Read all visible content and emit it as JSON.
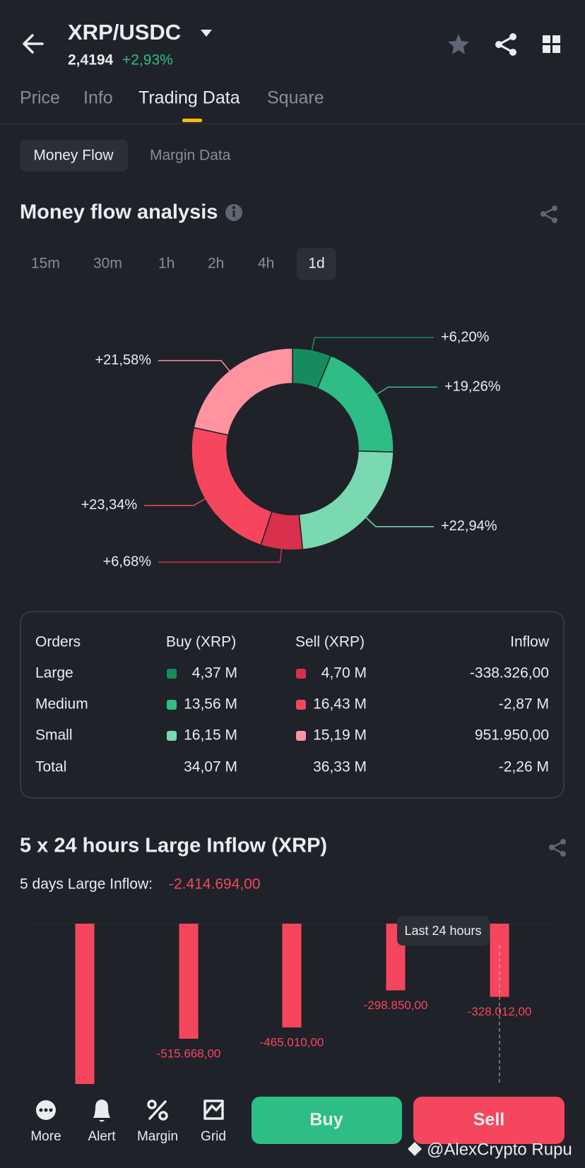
{
  "header": {
    "pair": "XRP/USDC",
    "price": "2,4194",
    "change": "+2,93%"
  },
  "tabs": [
    "Price",
    "Info",
    "Trading Data",
    "Square"
  ],
  "sub_tabs": [
    "Money Flow",
    "Margin Data"
  ],
  "intervals": [
    "15m",
    "30m",
    "1h",
    "2h",
    "4h",
    "1d"
  ],
  "chart_data": [
    {
      "type": "pie",
      "title": "Money flow analysis",
      "values": [
        6.2,
        19.26,
        22.94,
        6.68,
        23.34,
        21.58
      ],
      "value_labels": [
        "+6,20%",
        "+19,26%",
        "+22,94%",
        "+6,68%",
        "+23,34%",
        "+21,58%"
      ],
      "colors": [
        "#168c5e",
        "#2ebd85",
        "#7ad9b0",
        "#d9304e",
        "#f6465d",
        "#ff939f"
      ]
    },
    {
      "type": "bar",
      "title": "5 x 24 hours Large Inflow (XRP)",
      "total_label": "5 days Large Inflow:",
      "total": "-2.414.694,00",
      "categories": [
        null,
        null,
        null,
        null,
        null
      ],
      "values": [
        -807154,
        -515668,
        -465010,
        -298850,
        -328012
      ],
      "value_labels": [
        null,
        "-515.668,00",
        "-465.010,00",
        "-298.850,00",
        "-328.012,00"
      ],
      "color": "#f6465d",
      "ylim": [
        -1000000,
        0
      ],
      "annotation": "Last 24 hours"
    }
  ],
  "table": {
    "header": [
      "Orders",
      "Buy (XRP)",
      "Sell (XRP)",
      "Inflow"
    ],
    "rows": [
      [
        "Large",
        "4,37 M",
        "4,70 M",
        "-338.326,00"
      ],
      [
        "Medium",
        "13,56 M",
        "16,43 M",
        "-2,87 M"
      ],
      [
        "Small",
        "16,15 M",
        "15,19 M",
        "951.950,00"
      ],
      [
        "Total",
        "34,07 M",
        "36,33 M",
        "-2,26 M"
      ]
    ]
  },
  "footer": {
    "nav": [
      "More",
      "Alert",
      "Margin",
      "Grid"
    ],
    "buy": "Buy",
    "sell": "Sell"
  },
  "watermark": "@AlexCrypto Rupu"
}
